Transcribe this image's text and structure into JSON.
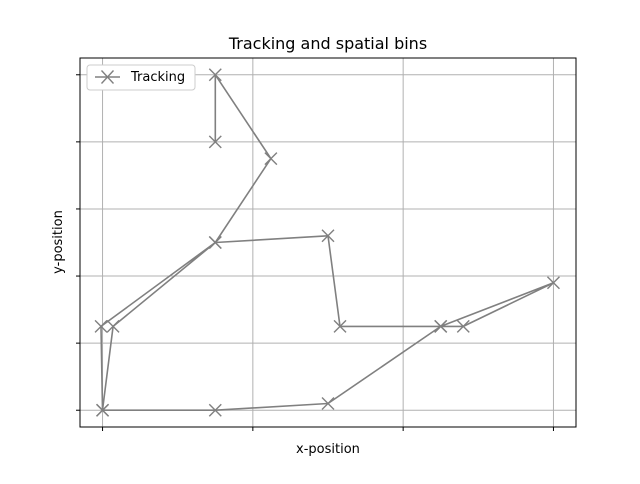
{
  "chart_data": {
    "type": "line",
    "title": "Tracking and spatial bins",
    "xlabel": "x-position",
    "ylabel": "y-position",
    "xlim": [
      -0.15,
      3.15
    ],
    "ylim": [
      -0.25,
      5.25
    ],
    "x_gridlines": [
      0,
      1,
      2,
      3
    ],
    "y_gridlines": [
      0,
      1,
      2,
      3,
      4,
      5
    ],
    "grid": true,
    "ticks_labeled": false,
    "legend_position": "top-left",
    "series": [
      {
        "name": "Tracking",
        "color": "#808080",
        "marker": "x",
        "points": [
          {
            "x": 0.75,
            "y": 4.0
          },
          {
            "x": 0.75,
            "y": 5.0
          },
          {
            "x": 1.12,
            "y": 3.75
          },
          {
            "x": 0.75,
            "y": 2.5
          },
          {
            "x": 1.5,
            "y": 2.6
          },
          {
            "x": 1.58,
            "y": 1.25
          },
          {
            "x": 2.25,
            "y": 1.25
          },
          {
            "x": 2.4,
            "y": 1.25
          },
          {
            "x": 3.0,
            "y": 1.9
          },
          {
            "x": 2.25,
            "y": 1.25
          },
          {
            "x": 1.5,
            "y": 0.1
          },
          {
            "x": 0.75,
            "y": 0.0
          },
          {
            "x": 0.0,
            "y": 0.0
          },
          {
            "x": 0.07,
            "y": 1.25
          },
          {
            "x": 0.75,
            "y": 2.5
          },
          {
            "x": -0.01,
            "y": 1.25
          },
          {
            "x": 0.0,
            "y": 0.0
          }
        ]
      }
    ]
  }
}
